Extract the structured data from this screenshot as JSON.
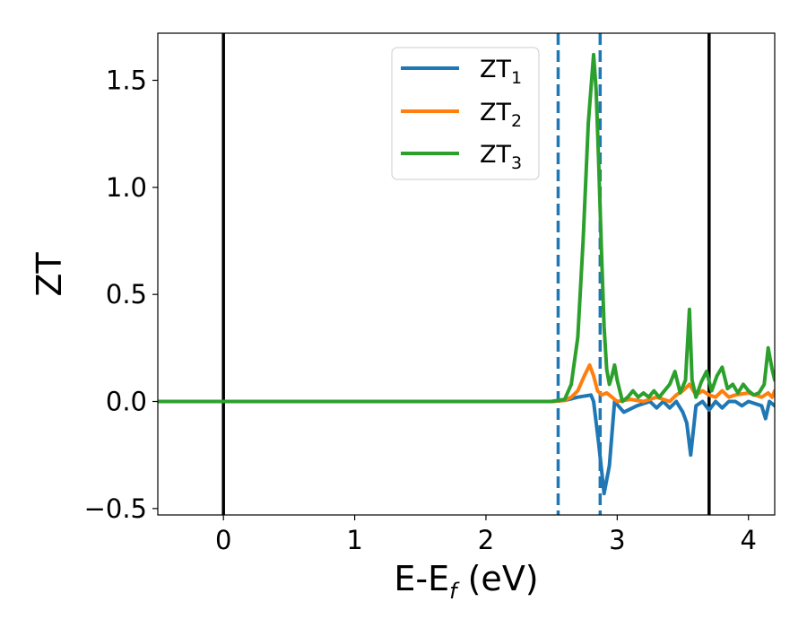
{
  "chart_data": {
    "type": "line",
    "xlabel": {
      "main": "E-E",
      "sub": "f",
      "suffix": " (eV)"
    },
    "ylabel": "ZT",
    "xlim": [
      -0.5,
      4.2
    ],
    "ylim": [
      -0.53,
      1.72
    ],
    "xticks": [
      0,
      1,
      2,
      3,
      4
    ],
    "xtick_labels": [
      "0",
      "1",
      "2",
      "3",
      "4"
    ],
    "yticks": [
      -0.5,
      0.0,
      0.5,
      1.0,
      1.5
    ],
    "ytick_labels": [
      "−0.5",
      "0.0",
      "0.5",
      "1.0",
      "1.5"
    ],
    "grid": false,
    "legend_position": "top-center",
    "vlines_solid": [
      0,
      3.7
    ],
    "vlines_dashed": [
      2.55,
      2.87
    ],
    "vline_solid_color": "#000000",
    "vline_dashed_color": "#1f77b4",
    "series": [
      {
        "name": "ZT",
        "name_sub": "1",
        "color": "#1f77b4",
        "x": [
          -0.5,
          2.5,
          2.6,
          2.7,
          2.8,
          2.82,
          2.86,
          2.9,
          2.94,
          2.98,
          3.05,
          3.15,
          3.2,
          3.25,
          3.3,
          3.35,
          3.4,
          3.45,
          3.5,
          3.53,
          3.56,
          3.6,
          3.65,
          3.7,
          3.75,
          3.8,
          3.85,
          3.9,
          3.95,
          4.0,
          4.05,
          4.1,
          4.13,
          4.16,
          4.2
        ],
        "y": [
          0,
          0,
          0.005,
          0.02,
          0.03,
          0.0,
          -0.2,
          -0.43,
          -0.3,
          0.0,
          -0.05,
          -0.02,
          -0.01,
          0.0,
          -0.03,
          0.0,
          -0.03,
          0.0,
          -0.05,
          -0.1,
          -0.25,
          -0.02,
          0.0,
          -0.04,
          0.0,
          -0.03,
          0.0,
          0.0,
          -0.02,
          0.0,
          -0.01,
          -0.02,
          -0.08,
          0.0,
          -0.02
        ]
      },
      {
        "name": "ZT",
        "name_sub": "2",
        "color": "#ff7f0e",
        "x": [
          -0.5,
          2.5,
          2.6,
          2.65,
          2.7,
          2.75,
          2.79,
          2.82,
          2.85,
          2.88,
          2.92,
          2.96,
          3.0,
          3.1,
          3.2,
          3.3,
          3.4,
          3.45,
          3.5,
          3.55,
          3.6,
          3.65,
          3.7,
          3.75,
          3.8,
          3.85,
          3.9,
          4.0,
          4.1,
          4.15,
          4.18,
          4.2
        ],
        "y": [
          0,
          0,
          0.005,
          0.02,
          0.05,
          0.12,
          0.17,
          0.12,
          0.05,
          0.03,
          0.04,
          0.02,
          0.0,
          0.01,
          0.0,
          0.02,
          0.0,
          0.03,
          0.05,
          0.08,
          0.03,
          0.05,
          0.03,
          0.02,
          0.05,
          0.02,
          0.03,
          0.04,
          0.02,
          0.04,
          0.02,
          0.05
        ]
      },
      {
        "name": "ZT",
        "name_sub": "3",
        "color": "#2ca02c",
        "x": [
          -0.5,
          2.5,
          2.6,
          2.65,
          2.7,
          2.74,
          2.78,
          2.82,
          2.84,
          2.86,
          2.88,
          2.9,
          2.92,
          2.94,
          2.96,
          2.98,
          3.0,
          3.04,
          3.08,
          3.12,
          3.16,
          3.2,
          3.24,
          3.28,
          3.32,
          3.36,
          3.4,
          3.44,
          3.48,
          3.52,
          3.55,
          3.57,
          3.6,
          3.64,
          3.68,
          3.72,
          3.76,
          3.8,
          3.84,
          3.88,
          3.92,
          3.96,
          4.0,
          4.04,
          4.08,
          4.12,
          4.15,
          4.18,
          4.2
        ],
        "y": [
          0,
          0,
          0.01,
          0.08,
          0.3,
          0.75,
          1.3,
          1.62,
          1.45,
          1.1,
          0.7,
          0.35,
          0.15,
          0.08,
          0.12,
          0.17,
          0.1,
          0.0,
          0.02,
          0.05,
          0.02,
          0.04,
          0.02,
          0.05,
          0.02,
          0.05,
          0.08,
          0.14,
          0.04,
          0.1,
          0.43,
          0.1,
          0.02,
          0.09,
          0.14,
          0.05,
          0.12,
          0.16,
          0.06,
          0.08,
          0.04,
          0.08,
          0.05,
          0.03,
          0.04,
          0.08,
          0.25,
          0.15,
          0.1
        ]
      }
    ]
  }
}
